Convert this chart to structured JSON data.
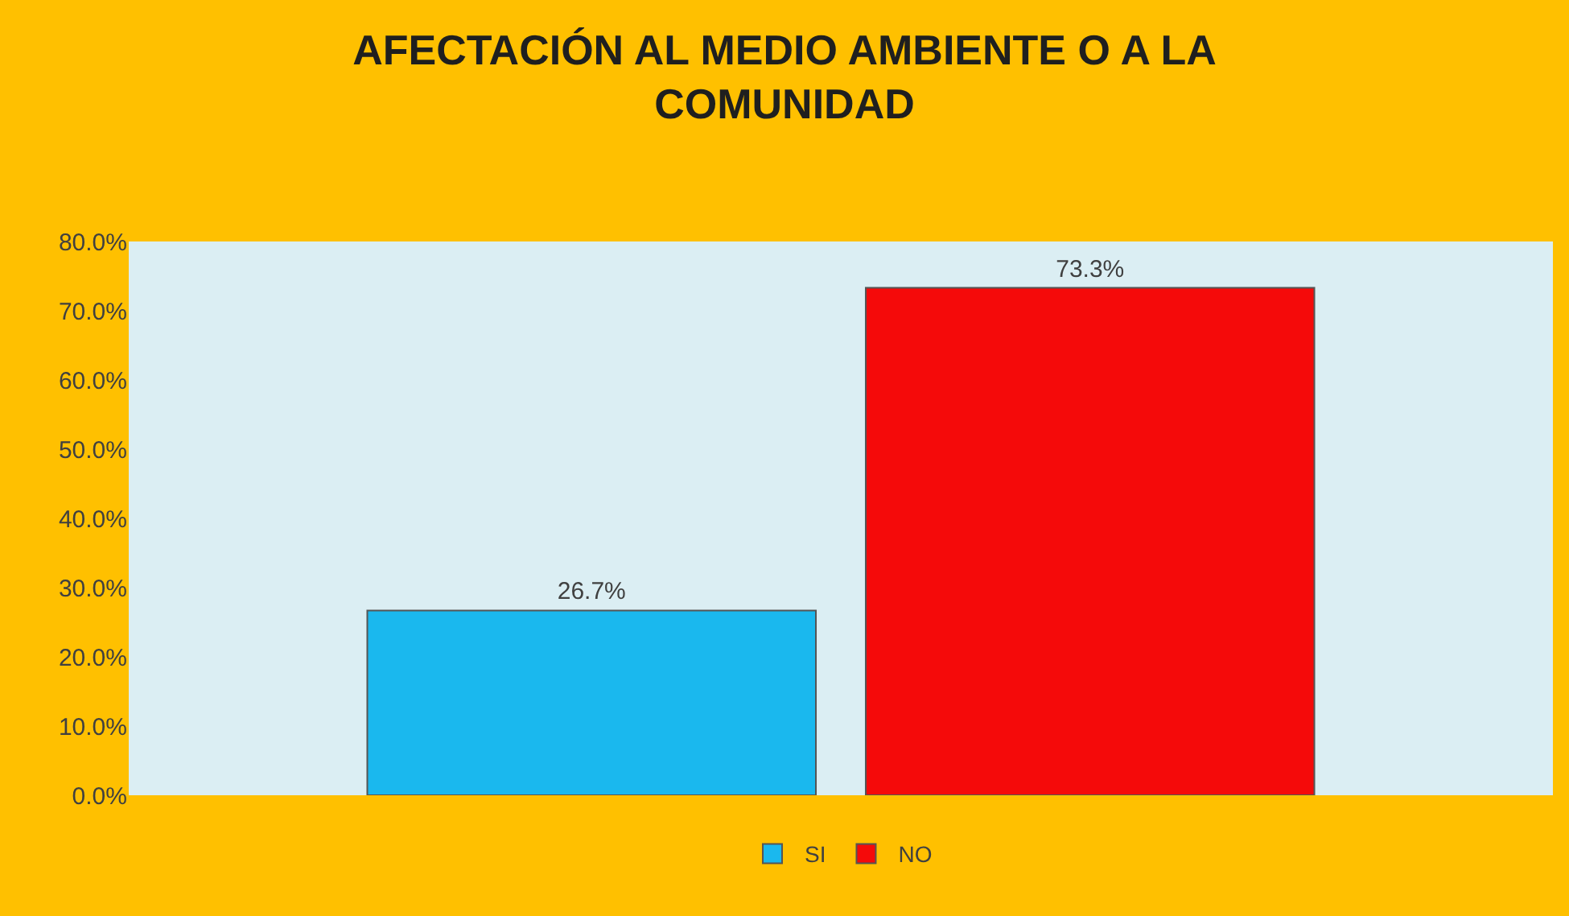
{
  "chart_data": {
    "type": "bar",
    "title": "AFECTACIÓN AL MEDIO AMBIENTE O A LA COMUNIDAD",
    "categories": [
      null
    ],
    "series": [
      {
        "name": "SI",
        "color": "#1ab8ee",
        "values": [
          26.7
        ],
        "value_labels": [
          "26.7%"
        ]
      },
      {
        "name": "NO",
        "color": "#f50a0a",
        "values": [
          73.3
        ],
        "value_labels": [
          "73.3%"
        ]
      }
    ],
    "ylim": [
      0,
      80
    ],
    "yticks": [
      {
        "value": 0,
        "label": "0.0%"
      },
      {
        "value": 10,
        "label": "10.0%"
      },
      {
        "value": 20,
        "label": "20.0%"
      },
      {
        "value": 30,
        "label": "30.0%"
      },
      {
        "value": 40,
        "label": "40.0%"
      },
      {
        "value": 50,
        "label": "50.0%"
      },
      {
        "value": 60,
        "label": "60.0%"
      },
      {
        "value": 70,
        "label": "70.0%"
      },
      {
        "value": 80,
        "label": "80.0%"
      }
    ],
    "tick_labels": "y",
    "grid": false,
    "legend": "bottom"
  }
}
